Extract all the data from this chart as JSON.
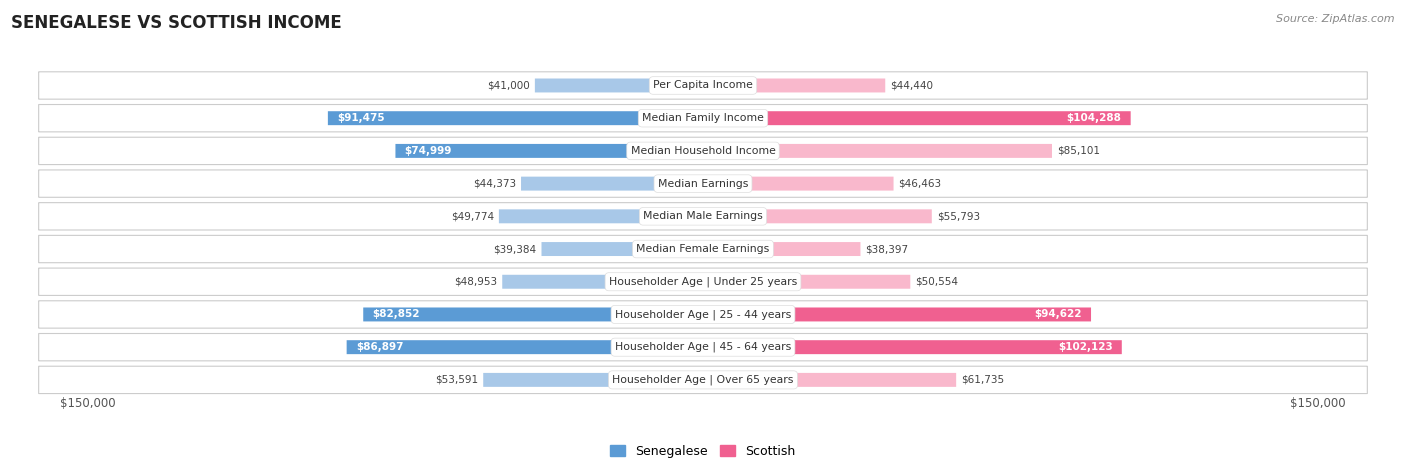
{
  "title": "SENEGALESE VS SCOTTISH INCOME",
  "source": "Source: ZipAtlas.com",
  "categories": [
    "Per Capita Income",
    "Median Family Income",
    "Median Household Income",
    "Median Earnings",
    "Median Male Earnings",
    "Median Female Earnings",
    "Householder Age | Under 25 years",
    "Householder Age | 25 - 44 years",
    "Householder Age | 45 - 64 years",
    "Householder Age | Over 65 years"
  ],
  "senegalese": [
    41000,
    91475,
    74999,
    44373,
    49774,
    39384,
    48953,
    82852,
    86897,
    53591
  ],
  "scottish": [
    44440,
    104288,
    85101,
    46463,
    55793,
    38397,
    50554,
    94622,
    102123,
    61735
  ],
  "senegalese_labels": [
    "$41,000",
    "$91,475",
    "$74,999",
    "$44,373",
    "$49,774",
    "$39,384",
    "$48,953",
    "$82,852",
    "$86,897",
    "$53,591"
  ],
  "scottish_labels": [
    "$44,440",
    "$104,288",
    "$85,101",
    "$46,463",
    "$55,793",
    "$38,397",
    "$50,554",
    "$94,622",
    "$102,123",
    "$61,735"
  ],
  "color_senegalese_light": "#a8c8e8",
  "color_senegalese_dark": "#5b9bd5",
  "color_scottish_light": "#f9b8cc",
  "color_scottish_dark": "#f06090",
  "bg_row": "#f0f0f0",
  "bg_row_alt": "#e8e8e8",
  "max_val": 150000,
  "xlabel_left": "$150,000",
  "xlabel_right": "$150,000",
  "legend_senegalese": "Senegalese",
  "legend_scottish": "Scottish",
  "senegalese_highlight": [
    1,
    2,
    7,
    8
  ],
  "scottish_highlight": [
    1,
    7,
    8
  ]
}
